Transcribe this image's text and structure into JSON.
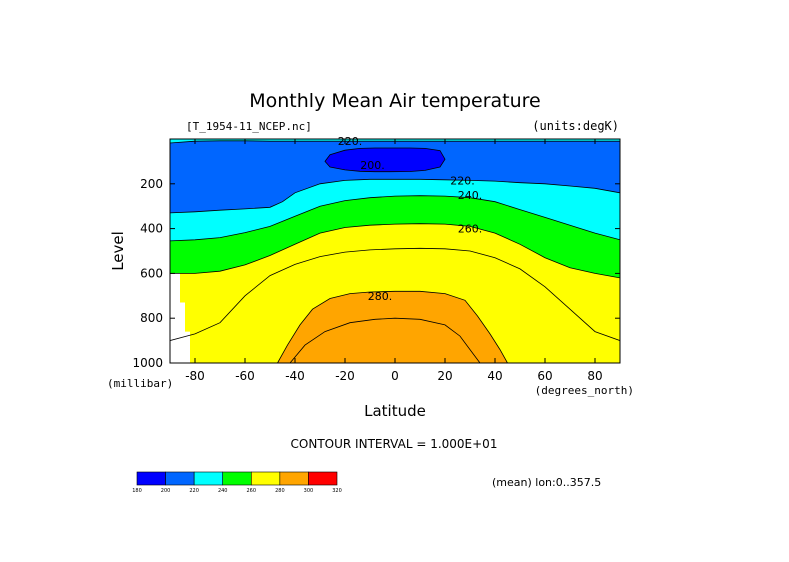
{
  "chart_data": {
    "type": "heatmap",
    "subtype": "filled-contour",
    "title": "Monthly Mean Air temperature",
    "file_label": "[T_1954-11_NCEP.nc]",
    "units_label": "(units:degK)",
    "xlabel": "Latitude",
    "xunits": "(degrees_north)",
    "ylabel": "Level",
    "yunits": "(millibar)",
    "xlim": [
      -90,
      90
    ],
    "ylim": [
      0,
      1000
    ],
    "y_inverted": true,
    "xticks": [
      -80,
      -60,
      -40,
      -20,
      0,
      20,
      40,
      60,
      80
    ],
    "xtick_labels": [
      "-80",
      "-60",
      "-40",
      "-20",
      "0",
      "20",
      "40",
      "60",
      "80"
    ],
    "yticks": [
      200,
      400,
      600,
      800,
      1000
    ],
    "ytick_labels": [
      "200",
      "400",
      "600",
      "800",
      "1000"
    ],
    "contour_interval_text": "CONTOUR INTERVAL = 1.000E+01",
    "mean_note": "(mean) lon:0..357.5",
    "levels": [
      180,
      200,
      220,
      240,
      260,
      280,
      300,
      320
    ],
    "level_labels": [
      "180",
      "200",
      "220",
      "240",
      "260",
      "280",
      "300",
      "320"
    ],
    "colors": [
      "#0000ff",
      "#0066ff",
      "#00ffff",
      "#00ff00",
      "#ffff00",
      "#ffa500",
      "#ff0000"
    ],
    "contour_labels": [
      {
        "text": "220.",
        "lat": -18,
        "level": 10
      },
      {
        "text": "200.",
        "lat": -9,
        "level": 115
      },
      {
        "text": "220.",
        "lat": 27,
        "level": 185
      },
      {
        "text": "240.",
        "lat": 30,
        "level": 250
      },
      {
        "text": "260.",
        "lat": 30,
        "level": 400
      },
      {
        "text": "280.",
        "lat": -6,
        "level": 700
      }
    ],
    "contours": [
      {
        "level": 200,
        "closed": true,
        "lat": [
          -28,
          -26,
          -20,
          -14,
          -8,
          -2,
          6,
          12,
          18,
          20,
          18,
          12,
          6,
          -2,
          -8,
          -14,
          -20,
          -26
        ],
        "press": [
          100,
          70,
          50,
          42,
          40,
          40,
          40,
          42,
          52,
          90,
          125,
          140,
          145,
          146,
          146,
          144,
          138,
          125
        ]
      },
      {
        "level": 220,
        "closed": false,
        "lat": [
          -90,
          -80,
          -70,
          -60,
          -50,
          -40,
          -30,
          -20,
          -10,
          0,
          10,
          20,
          30,
          40,
          50,
          60,
          70,
          80,
          90
        ],
        "press": [
          18,
          10,
          8,
          8,
          10,
          10,
          10,
          10,
          10,
          10,
          10,
          10,
          10,
          10,
          10,
          10,
          10,
          10,
          10
        ]
      },
      {
        "level": 220,
        "closed": false,
        "lat": [
          -90,
          -80,
          -70,
          -60,
          -50,
          -45,
          -40,
          -30,
          -20,
          -10,
          0,
          10,
          20,
          30,
          40,
          50,
          60,
          70,
          80,
          90
        ],
        "press": [
          330,
          325,
          318,
          312,
          305,
          280,
          240,
          200,
          185,
          180,
          180,
          180,
          182,
          185,
          188,
          195,
          200,
          210,
          220,
          240
        ]
      },
      {
        "level": 240,
        "closed": false,
        "lat": [
          -90,
          -80,
          -70,
          -60,
          -50,
          -40,
          -30,
          -20,
          -10,
          0,
          10,
          20,
          30,
          40,
          50,
          60,
          70,
          80,
          90
        ],
        "press": [
          455,
          450,
          440,
          418,
          390,
          345,
          300,
          275,
          262,
          255,
          253,
          255,
          262,
          280,
          315,
          350,
          385,
          420,
          450
        ]
      },
      {
        "level": 260,
        "closed": false,
        "lat": [
          -90,
          -80,
          -70,
          -60,
          -50,
          -40,
          -30,
          -20,
          -10,
          0,
          10,
          20,
          30,
          40,
          50,
          60,
          70,
          80,
          90
        ],
        "press": [
          600,
          600,
          590,
          562,
          520,
          470,
          420,
          395,
          385,
          380,
          378,
          380,
          390,
          420,
          470,
          530,
          575,
          600,
          620
        ]
      },
      {
        "level": 270,
        "closed": false,
        "lat": [
          -90,
          -80,
          -70,
          -60,
          -50,
          -40,
          -30,
          -20,
          -10,
          0,
          10,
          20,
          30,
          40,
          50,
          60,
          70,
          80,
          90
        ],
        "press": [
          900,
          870,
          820,
          700,
          610,
          560,
          525,
          505,
          495,
          490,
          488,
          490,
          500,
          530,
          580,
          660,
          760,
          860,
          900
        ]
      },
      {
        "level": 280,
        "closed": false,
        "lat": [
          -47,
          -43,
          -38,
          -33,
          -26,
          -18,
          -10,
          0,
          10,
          20,
          28,
          33,
          38,
          42,
          45
        ],
        "press": [
          1000,
          920,
          830,
          760,
          712,
          690,
          683,
          680,
          680,
          690,
          720,
          790,
          870,
          940,
          1000
        ]
      },
      {
        "level": 285,
        "closed": false,
        "lat": [
          -42,
          -36,
          -28,
          -18,
          -8,
          0,
          10,
          20,
          26,
          30,
          34
        ],
        "press": [
          1000,
          920,
          860,
          820,
          805,
          800,
          805,
          830,
          880,
          940,
          1000
        ]
      }
    ]
  }
}
